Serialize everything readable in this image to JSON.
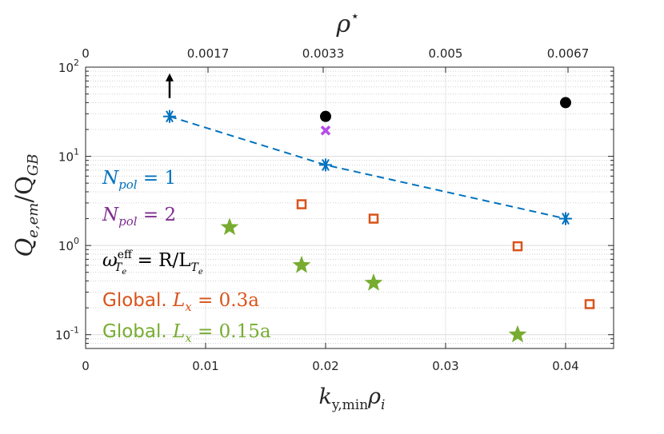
{
  "chart_data": {
    "type": "scatter",
    "y_scale": "log",
    "xlim": [
      0,
      0.044
    ],
    "ylim": [
      0.07,
      100
    ],
    "grid": true,
    "xlabel": "k",
    "xlabel_sub": "y,min",
    "xlabel_tail": "ρ",
    "xlabel_tail_sub": "i",
    "ylabel": "Q",
    "ylabel_sub": "e,em",
    "ylabel_sep": "/Q",
    "ylabel_sub2": "GB",
    "top_xlabel": "ρ",
    "top_xlabel_sup": "⋆",
    "x_ticks": [
      0,
      0.01,
      0.02,
      0.03,
      0.04
    ],
    "x_tick_labels": [
      "0",
      "0.01",
      "0.02",
      "0.03",
      "0.04"
    ],
    "top_ticks": [
      0,
      0.0102,
      0.0198,
      0.03,
      0.0402
    ],
    "top_tick_labels": [
      "0",
      "0.0017",
      "0.0033",
      "0.005",
      "0.0067"
    ],
    "y_ticks": [
      0.1,
      1,
      10,
      100
    ],
    "y_tick_labels": [
      {
        "base": "10",
        "exp": "-1"
      },
      {
        "base": "10",
        "exp": "0"
      },
      {
        "base": "10",
        "exp": "1"
      },
      {
        "base": "10",
        "exp": "2"
      }
    ],
    "series": [
      {
        "name": "N_pol = 1",
        "legend_main": "N",
        "legend_sub": "pol",
        "legend_tail": " = 1",
        "color": "#0072BD",
        "marker": "asterisk",
        "line": "dashed",
        "x": [
          0.007,
          0.02,
          0.04
        ],
        "y": [
          28,
          8,
          2
        ]
      },
      {
        "name": "N_pol = 2",
        "legend_main": "N",
        "legend_sub": "pol",
        "legend_tail": " = 2",
        "color": "#7E2F8E",
        "marker_color": "#B44CE8",
        "marker": "x",
        "x": [
          0.02
        ],
        "y": [
          19.5
        ]
      },
      {
        "name": "ω_Te^eff = R/L_Te",
        "legend_main": "ω",
        "legend_sub": "T",
        "legend_subsub": "e",
        "legend_sup": "eff",
        "legend_tail": " = R/L",
        "legend_sub2": "T",
        "legend_subsub2": "e",
        "color": "#000000",
        "marker": "circle",
        "x": [
          0.02,
          0.04
        ],
        "y": [
          28,
          40
        ]
      },
      {
        "name": "Global. L_x = 0.3a",
        "legend_prefix": "Global.  ",
        "legend_main": "L",
        "legend_sub": "x",
        "legend_tail": " = 0.3a",
        "color": "#D95319",
        "marker": "square",
        "x": [
          0.018,
          0.024,
          0.036,
          0.042
        ],
        "y": [
          2.9,
          2.0,
          0.98,
          0.22
        ]
      },
      {
        "name": "Global. L_x = 0.15a",
        "legend_prefix": "Global.  ",
        "legend_main": "L",
        "legend_sub": "x",
        "legend_tail": " = 0.15a",
        "color": "#77AC30",
        "marker": "star",
        "x": [
          0.012,
          0.018,
          0.024,
          0.036
        ],
        "y": [
          1.6,
          0.6,
          0.38,
          0.1
        ]
      }
    ],
    "annotations": [
      {
        "type": "arrow-up",
        "x": 0.007,
        "y_from": 45,
        "y_to": 80,
        "color": "#000000"
      }
    ]
  }
}
